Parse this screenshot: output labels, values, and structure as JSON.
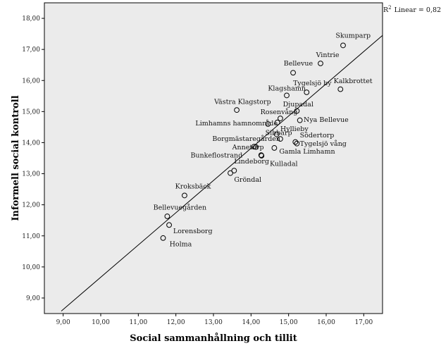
{
  "chart_data": {
    "type": "scatter",
    "title": "",
    "xlabel": "Social sammanhållning och tillit",
    "ylabel": "Informell social kontroll",
    "xlim": [
      8.5,
      17.5
    ],
    "ylim": [
      8.5,
      18.5
    ],
    "xticks": [
      9,
      10,
      11,
      12,
      13,
      14,
      15,
      16,
      17
    ],
    "yticks": [
      9,
      10,
      11,
      12,
      13,
      14,
      15,
      16,
      17,
      18
    ],
    "xtick_labels": [
      "9,00",
      "10,00",
      "11,00",
      "12,00",
      "13,00",
      "14,00",
      "15,00",
      "16,00",
      "17,00"
    ],
    "ytick_labels": [
      "9,00",
      "10,00",
      "11,00",
      "12,00",
      "13,00",
      "14,00",
      "15,00",
      "16,00",
      "17,00",
      "18,00"
    ],
    "grid": false,
    "background": "#ebebeb",
    "fit_line": {
      "type": "linear",
      "label_prefix": "R",
      "label_exp": "2",
      "label_suffix": "Linear = 0,823",
      "x1": 8.95,
      "y1": 8.58,
      "x2": 17.5,
      "y2": 17.45
    },
    "points": [
      {
        "name": "Skumparp",
        "x": 16.45,
        "y": 17.13
      },
      {
        "name": "Vintrie",
        "x": 15.85,
        "y": 16.55
      },
      {
        "name": "Bellevue",
        "x": 15.12,
        "y": 16.25
      },
      {
        "name": "Kalkbrottet",
        "x": 16.38,
        "y": 15.72
      },
      {
        "name": "Tygelsjö by",
        "x": 15.48,
        "y": 15.62
      },
      {
        "name": "Klagshamn",
        "x": 14.95,
        "y": 15.52
      },
      {
        "name": "Västra Klagstorp",
        "x": 13.62,
        "y": 15.05
      },
      {
        "name": "Djupadal",
        "x": 15.22,
        "y": 15.02
      },
      {
        "name": "Rosenvång",
        "x": 14.78,
        "y": 14.78
      },
      {
        "name": "Nya Bellevue",
        "x": 15.3,
        "y": 14.72
      },
      {
        "name": "Limhamns hamnområde",
        "x": 14.45,
        "y": 14.6
      },
      {
        "name": "Sibbarp",
        "x": 14.7,
        "y": 14.65
      },
      {
        "name": "Hyllieby",
        "x": 14.68,
        "y": 14.27
      },
      {
        "name": "Borgmästaregården",
        "x": 14.78,
        "y": 14.12
      },
      {
        "name": "Södertorp",
        "x": 15.18,
        "y": 14.02
      },
      {
        "name": "Tygelsjö vång",
        "x": 15.22,
        "y": 13.97
      },
      {
        "name": "Annetorp",
        "x": 14.13,
        "y": 13.86
      },
      {
        "name": "Annetorp-2",
        "x": 14.08,
        "y": 13.87
      },
      {
        "name": "Gamla Limhamn",
        "x": 14.62,
        "y": 13.83
      },
      {
        "name": "Bunkeflostrand",
        "x": 14.27,
        "y": 13.6
      },
      {
        "name": "Kulladal",
        "x": 14.28,
        "y": 13.58
      },
      {
        "name": "Lindeborg",
        "x": 13.55,
        "y": 13.1
      },
      {
        "name": "Gröndal",
        "x": 13.45,
        "y": 13.02
      },
      {
        "name": "Kroksbäck",
        "x": 12.23,
        "y": 12.3
      },
      {
        "name": "Bellevuegården",
        "x": 11.77,
        "y": 11.63
      },
      {
        "name": "Lorensborg",
        "x": 11.82,
        "y": 11.35
      },
      {
        "name": "Holma",
        "x": 11.66,
        "y": 10.93
      }
    ],
    "labels": [
      {
        "text": "Skumparp",
        "x": 16.25,
        "y": 17.38
      },
      {
        "text": "Vintrie",
        "x": 15.73,
        "y": 16.75
      },
      {
        "text": "Bellevue",
        "x": 14.87,
        "y": 16.48
      },
      {
        "text": "Kalkbrottet",
        "x": 16.2,
        "y": 15.92
      },
      {
        "text": "Tygelsjö by",
        "x": 15.12,
        "y": 15.85
      },
      {
        "text": "Klagshamn",
        "x": 14.45,
        "y": 15.68
      },
      {
        "text": "Västra Klagstorp",
        "x": 13.02,
        "y": 15.25
      },
      {
        "text": "Djupadal",
        "x": 14.85,
        "y": 15.17
      },
      {
        "text": "Rosenvång",
        "x": 14.25,
        "y": 14.92
      },
      {
        "text": "Nya Bellevue",
        "x": 15.4,
        "y": 14.67
      },
      {
        "text": "Limhamns hamnområde",
        "x": 12.52,
        "y": 14.55
      },
      {
        "text": "Sibbarp",
        "x": 14.38,
        "y": 14.25
      },
      {
        "text": "Hyllieby",
        "x": 14.78,
        "y": 14.37
      },
      {
        "text": "Borgmästaregården",
        "x": 12.97,
        "y": 14.05
      },
      {
        "text": "Södertorp",
        "x": 15.3,
        "y": 14.17
      },
      {
        "text": "Tygelsjö vång",
        "x": 15.3,
        "y": 13.9
      },
      {
        "text": "Annetorp",
        "x": 13.5,
        "y": 13.78
      },
      {
        "text": "Gamla Limhamn",
        "x": 14.75,
        "y": 13.65
      },
      {
        "text": "Bunkeflostrand",
        "x": 12.39,
        "y": 13.52
      },
      {
        "text": "Kulladal",
        "x": 14.5,
        "y": 13.25
      },
      {
        "text": "Lindeborg",
        "x": 13.55,
        "y": 13.33
      },
      {
        "text": "Gröndal",
        "x": 13.55,
        "y": 12.74
      },
      {
        "text": "Kroksbäck",
        "x": 11.98,
        "y": 12.52
      },
      {
        "text": "Bellevuegården",
        "x": 11.4,
        "y": 11.85
      },
      {
        "text": "Lorensborg",
        "x": 11.93,
        "y": 11.08
      },
      {
        "text": "Holma",
        "x": 11.83,
        "y": 10.67
      }
    ]
  }
}
